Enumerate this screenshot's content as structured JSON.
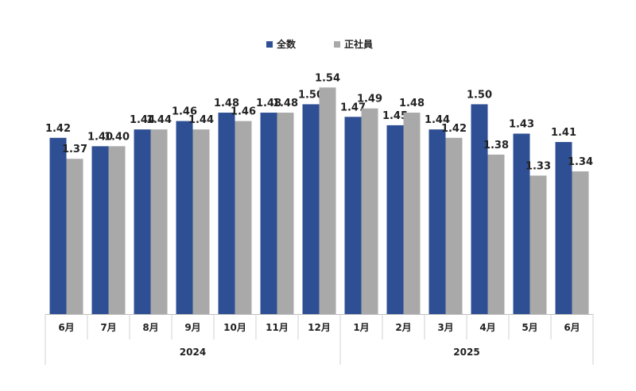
{
  "chart_data": {
    "type": "bar",
    "categories": [
      "6月",
      "7月",
      "8月",
      "9月",
      "10月",
      "11月",
      "12月",
      "1月",
      "2月",
      "3月",
      "4月",
      "5月",
      "6月"
    ],
    "groups": [
      {
        "label": "2024",
        "start": 0,
        "end": 6
      },
      {
        "label": "2025",
        "start": 7,
        "end": 12
      }
    ],
    "series": [
      {
        "name": "全数",
        "color": "#2e4f93",
        "values": [
          1.42,
          1.4,
          1.44,
          1.46,
          1.48,
          1.48,
          1.5,
          1.47,
          1.45,
          1.44,
          1.5,
          1.43,
          1.41
        ]
      },
      {
        "name": "正社員",
        "color": "#a9a9a9",
        "values": [
          1.37,
          1.4,
          1.44,
          1.44,
          1.46,
          1.48,
          1.54,
          1.49,
          1.48,
          1.42,
          1.38,
          1.33,
          1.34
        ]
      }
    ],
    "value_labels": [
      [
        "1.42",
        "1.40",
        "1.44",
        "1.46",
        "1.48",
        "1.48",
        "1.50",
        "1.47",
        "1.45",
        "1.44",
        "1.50",
        "1.43",
        "1.41"
      ],
      [
        "1.37",
        "1.40",
        "1.44",
        "1.44",
        "1.46",
        "1.48",
        "1.54",
        "1.49",
        "1.48",
        "1.42",
        "1.38",
        "1.33",
        "1.34"
      ]
    ],
    "ylim": [
      1.0,
      1.55
    ],
    "legend": "top-center",
    "grid": false
  }
}
